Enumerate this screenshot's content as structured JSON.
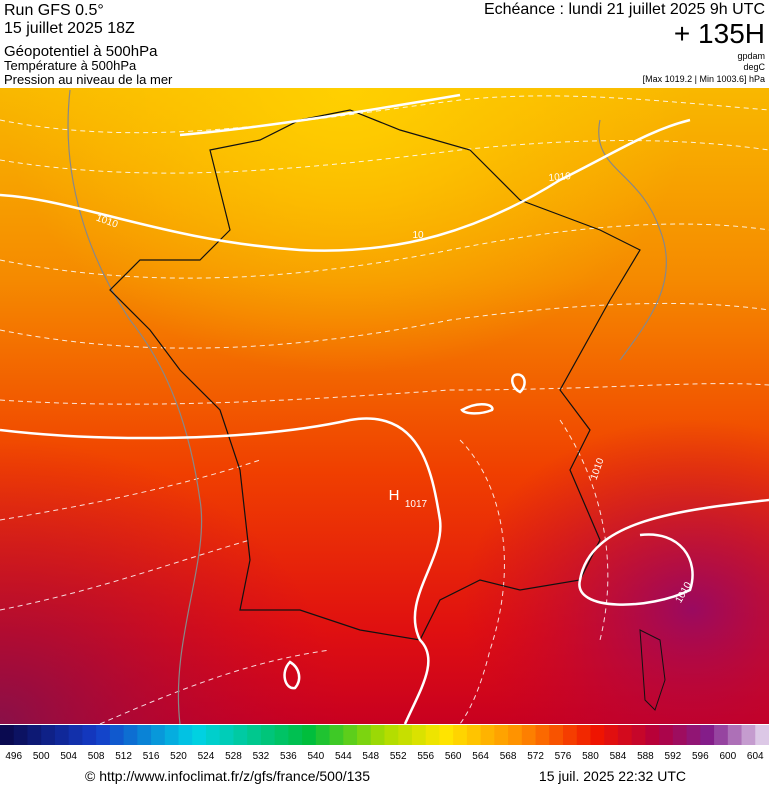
{
  "header": {
    "run": "Run GFS 0.5°",
    "date": "15 juillet 2025 18Z",
    "field1": "Géopotentiel à 500hPa",
    "field2": "Température à 500hPa",
    "field3": "Pression au niveau de la mer",
    "echeance": "Echéance : lundi 21 juillet 2025 9h UTC",
    "offset": "+ 135H",
    "unit1": "gpdam",
    "unit2": "degC",
    "range": "[Max 1019.2 | Min 1003.6] hPa"
  },
  "map": {
    "labels": [
      "1010",
      "1010",
      "10",
      "H",
      "1017",
      "1010",
      "1010"
    ]
  },
  "colorbar": {
    "ticks": [
      496,
      500,
      504,
      508,
      512,
      516,
      520,
      524,
      528,
      532,
      536,
      540,
      544,
      548,
      552,
      556,
      560,
      564,
      568,
      572,
      576,
      580,
      584,
      588,
      592,
      596,
      600,
      604
    ]
  },
  "footer": {
    "url": "© http://www.infoclimat.fr/z/gfs/france/500/135",
    "stamp": "15 juil. 2025 22:32 UTC"
  }
}
